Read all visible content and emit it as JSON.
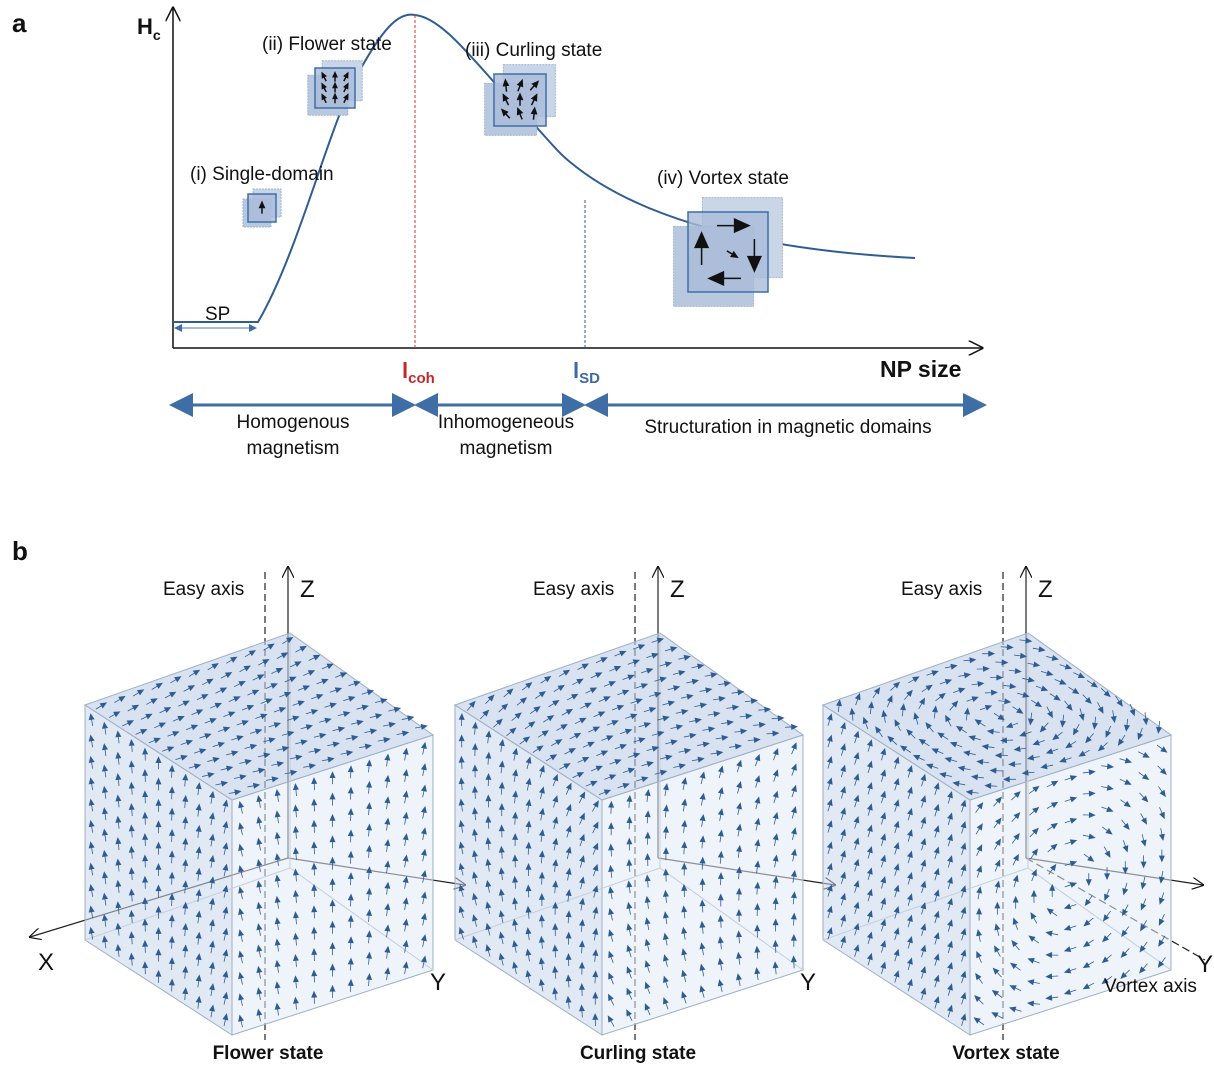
{
  "panel_a": {
    "label": "a",
    "y_axis": {
      "main": "H",
      "sub": "c"
    },
    "x_axis": "NP size",
    "states": [
      "(i) Single-domain",
      "(ii) Flower state",
      "(iii) Curling state",
      "(iv) Vortex state"
    ],
    "sp": "SP",
    "l_coh": {
      "main": "l",
      "sub": "coh"
    },
    "l_sd": {
      "main": "l",
      "sub": "SD"
    },
    "regimes": [
      [
        "Homogenous",
        "magnetism"
      ],
      [
        "Inhomogeneous",
        "magnetism"
      ],
      [
        "Structuration in magnetic domains"
      ]
    ]
  },
  "panel_b": {
    "label": "b",
    "cubes": [
      {
        "easy_axis": "Easy axis",
        "z": "Z",
        "x": "X",
        "y": "Y",
        "caption": "Flower state"
      },
      {
        "easy_axis": "Easy axis",
        "z": "Z",
        "y": "Y",
        "caption": "Curling state"
      },
      {
        "easy_axis": "Easy axis",
        "z": "Z",
        "y": "Y",
        "vortex_axis": "Vortex axis",
        "caption": "Vortex state"
      }
    ]
  }
}
